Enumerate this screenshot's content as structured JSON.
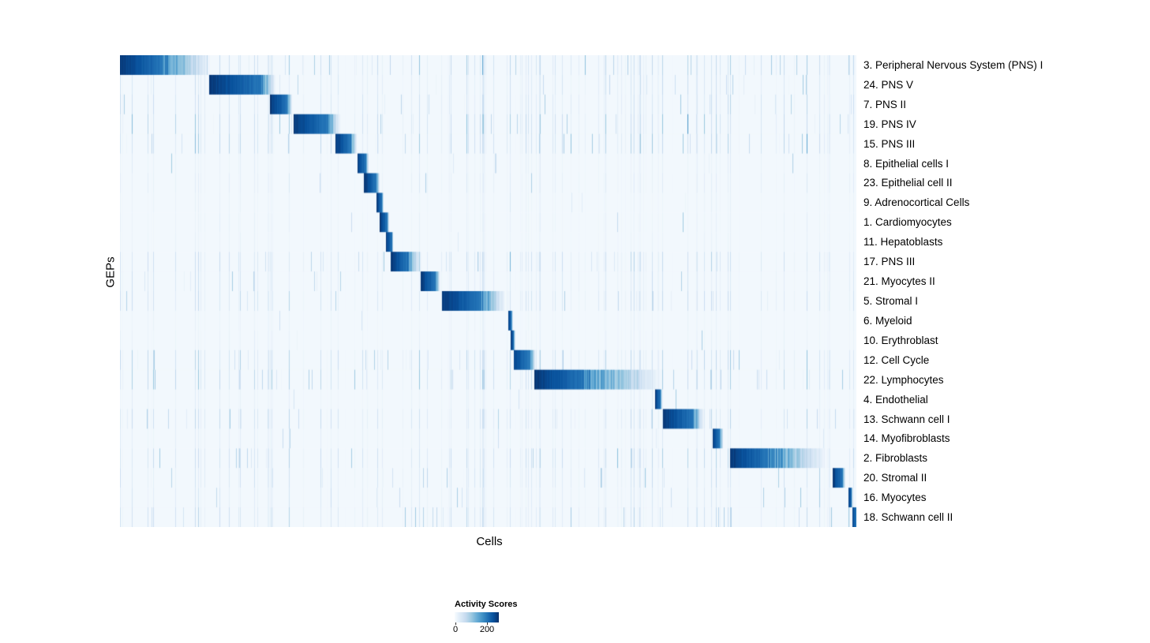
{
  "figure": {
    "background": "#ffffff"
  },
  "chart_data": {
    "type": "heatmap",
    "title": "",
    "xlabel": "Cells",
    "ylabel": "GEPs",
    "legend": {
      "title": "Activity Scores",
      "min": 0,
      "max": 200
    },
    "colormap": "Blues",
    "colormap_stops": [
      "#f7fbff",
      "#deebf7",
      "#c6dbef",
      "#9ecae1",
      "#6baed6",
      "#4292c6",
      "#2171b5",
      "#08519c",
      "#08306b"
    ],
    "n_columns": 933,
    "baseline_value": 5,
    "rows": [
      {
        "label": "3. Peripheral Nervous System (PNS) I",
        "block": [
          0.0,
          0.057
        ],
        "fade": 0.125,
        "peak": 200,
        "noise": 0.45
      },
      {
        "label": "24. PNS V",
        "block": [
          0.121,
          0.191
        ],
        "fade": 0.212,
        "peak": 200,
        "noise": 0.3
      },
      {
        "label": "7. PNS II",
        "block": [
          0.203,
          0.227
        ],
        "fade": 0.234,
        "peak": 200,
        "noise": 0.35
      },
      {
        "label": "19. PNS IV",
        "block": [
          0.235,
          0.28
        ],
        "fade": 0.3,
        "peak": 200,
        "noise": 0.5
      },
      {
        "label": "15. PNS III",
        "block": [
          0.292,
          0.313
        ],
        "fade": 0.322,
        "peak": 200,
        "noise": 0.45
      },
      {
        "label": "8. Epithelial cells I",
        "block": [
          0.322,
          0.334
        ],
        "fade": 0.338,
        "peak": 200,
        "noise": 0.12
      },
      {
        "label": "23. Epithelial cell II",
        "block": [
          0.331,
          0.348
        ],
        "fade": 0.353,
        "peak": 200,
        "noise": 0.15
      },
      {
        "label": "9. Adrenocortical Cells",
        "block": [
          0.348,
          0.356
        ],
        "fade": 0.358,
        "peak": 200,
        "noise": 0.08
      },
      {
        "label": "1. Cardiomyocytes",
        "block": [
          0.353,
          0.363
        ],
        "fade": 0.366,
        "peak": 200,
        "noise": 0.1
      },
      {
        "label": "11. Hepatoblasts",
        "block": [
          0.361,
          0.369
        ],
        "fade": 0.371,
        "peak": 200,
        "noise": 0.08
      },
      {
        "label": "17. PNS III",
        "block": [
          0.368,
          0.39
        ],
        "fade": 0.41,
        "peak": 200,
        "noise": 0.4
      },
      {
        "label": "21. Myocytes II",
        "block": [
          0.408,
          0.428
        ],
        "fade": 0.435,
        "peak": 200,
        "noise": 0.25
      },
      {
        "label": "5. Stromal I",
        "block": [
          0.437,
          0.489
        ],
        "fade": 0.525,
        "peak": 200,
        "noise": 0.35
      },
      {
        "label": "6. Myeloid",
        "block": [
          0.527,
          0.532
        ],
        "fade": 0.534,
        "peak": 200,
        "noise": 0.08
      },
      {
        "label": "10. Erythroblast",
        "block": [
          0.531,
          0.535
        ],
        "fade": 0.537,
        "peak": 200,
        "noise": 0.1
      },
      {
        "label": "12. Cell Cycle",
        "block": [
          0.535,
          0.557
        ],
        "fade": 0.565,
        "peak": 190,
        "noise": 0.45
      },
      {
        "label": "22. Lymphocytes",
        "block": [
          0.563,
          0.63
        ],
        "fade": 0.74,
        "peak": 200,
        "noise": 0.5
      },
      {
        "label": "4. Endothelial",
        "block": [
          0.727,
          0.734
        ],
        "fade": 0.737,
        "peak": 200,
        "noise": 0.12
      },
      {
        "label": "13. Schwann cell I",
        "block": [
          0.738,
          0.778
        ],
        "fade": 0.794,
        "peak": 200,
        "noise": 0.35
      },
      {
        "label": "14. Myofibroblasts",
        "block": [
          0.805,
          0.815
        ],
        "fade": 0.82,
        "peak": 200,
        "noise": 0.15
      },
      {
        "label": "2. Fibroblasts",
        "block": [
          0.829,
          0.88
        ],
        "fade": 0.962,
        "peak": 200,
        "noise": 0.4
      },
      {
        "label": "20. Stromal II",
        "block": [
          0.968,
          0.982
        ],
        "fade": 0.986,
        "peak": 200,
        "noise": 0.3
      },
      {
        "label": "16. Myocytes",
        "block": [
          0.99,
          0.994
        ],
        "fade": 0.996,
        "peak": 200,
        "noise": 0.2
      },
      {
        "label": "18. Schwann cell II",
        "block": [
          0.995,
          1.0
        ],
        "fade": 1.0,
        "peak": 200,
        "noise": 0.35
      }
    ]
  }
}
